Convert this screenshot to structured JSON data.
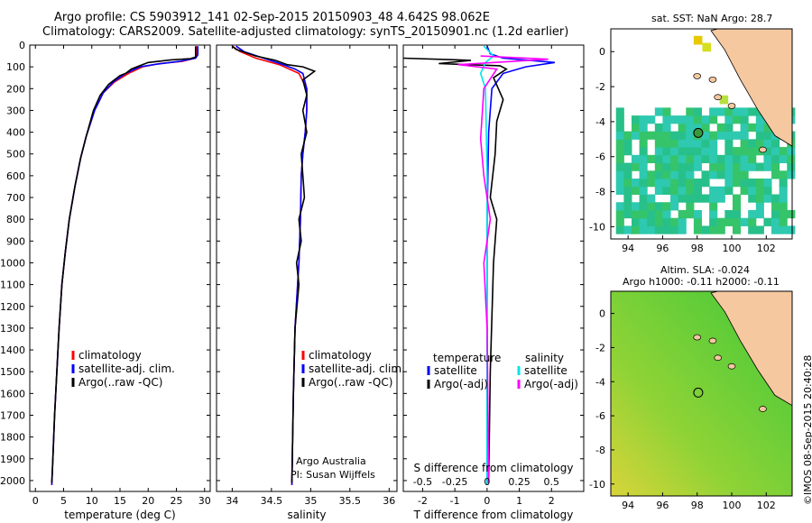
{
  "header": {
    "line1": "Argo profile: CS 5903912_141 02-Sep-2015 20150903_48 4.642S 98.062E",
    "line2": "Climatology: CARS2009. Satellite-adjusted climatology: synTS_20150901.nc (1.2d earlier)"
  },
  "colors": {
    "climatology": "#ff0000",
    "satellite": "#0000ff",
    "argo": "#000000",
    "salinity_sat": "#00e5ee",
    "salinity_argo": "#ff00ff"
  },
  "depth_ticks": [
    0,
    100,
    200,
    300,
    400,
    500,
    600,
    700,
    800,
    900,
    1000,
    1100,
    1200,
    1300,
    1400,
    1500,
    1600,
    1700,
    1800,
    1900,
    2000
  ],
  "chart_data": [
    {
      "type": "line",
      "panel": "temperature",
      "xlabel": "temperature (deg C)",
      "xlim": [
        -1,
        31
      ],
      "ylim": [
        2050,
        0
      ],
      "xticks": [
        0,
        5,
        10,
        15,
        20,
        25,
        30
      ],
      "legend": [
        "climatology",
        "satellite-adj. clim.",
        "Argo(..raw -QC)"
      ],
      "series": [
        {
          "name": "climatology",
          "color": "#ff0000",
          "points": [
            [
              28.6,
              5
            ],
            [
              28.6,
              45
            ],
            [
              28.3,
              60
            ],
            [
              26,
              75
            ],
            [
              22,
              85
            ],
            [
              19,
              100
            ],
            [
              16.5,
              130
            ],
            [
              14,
              170
            ],
            [
              12,
              220
            ],
            [
              10.5,
              300
            ],
            [
              9,
              420
            ],
            [
              8,
              520
            ],
            [
              7,
              650
            ],
            [
              6,
              800
            ],
            [
              5.3,
              950
            ],
            [
              4.7,
              1100
            ],
            [
              4.2,
              1300
            ],
            [
              3.8,
              1500
            ],
            [
              3.4,
              1700
            ],
            [
              3.1,
              1900
            ],
            [
              2.9,
              2020
            ]
          ]
        },
        {
          "name": "satellite-adj. clim.",
          "color": "#0000ff",
          "points": [
            [
              28.8,
              5
            ],
            [
              28.8,
              45
            ],
            [
              28.4,
              60
            ],
            [
              25.5,
              75
            ],
            [
              21.5,
              88
            ],
            [
              18.5,
              100
            ],
            [
              16,
              130
            ],
            [
              13.8,
              170
            ],
            [
              12,
              220
            ],
            [
              10.5,
              300
            ],
            [
              9,
              420
            ],
            [
              8,
              520
            ],
            [
              7,
              650
            ],
            [
              6,
              800
            ],
            [
              5.3,
              950
            ],
            [
              4.7,
              1100
            ],
            [
              4.2,
              1300
            ],
            [
              3.8,
              1500
            ],
            [
              3.4,
              1700
            ],
            [
              3.1,
              1900
            ],
            [
              2.9,
              2020
            ]
          ]
        },
        {
          "name": "Argo(..raw -QC)",
          "color": "#000000",
          "points": [
            [
              28.4,
              5
            ],
            [
              28.4,
              55
            ],
            [
              27.5,
              62
            ],
            [
              24,
              68
            ],
            [
              20,
              80
            ],
            [
              18.5,
              95
            ],
            [
              17,
              110
            ],
            [
              16,
              130
            ],
            [
              15,
              140
            ],
            [
              13,
              180
            ],
            [
              11.5,
              230
            ],
            [
              10.3,
              300
            ],
            [
              9,
              420
            ],
            [
              8,
              520
            ],
            [
              7,
              650
            ],
            [
              6,
              800
            ],
            [
              5.3,
              950
            ],
            [
              4.7,
              1100
            ],
            [
              4.2,
              1300
            ],
            [
              3.8,
              1500
            ],
            [
              3.4,
              1700
            ],
            [
              3.1,
              1900
            ],
            [
              2.9,
              2010
            ]
          ]
        }
      ]
    },
    {
      "type": "line",
      "panel": "salinity",
      "xlabel": "salinity",
      "xlim": [
        33.8,
        36.1
      ],
      "ylim": [
        2050,
        0
      ],
      "xticks": [
        34,
        34.5,
        35,
        35.5,
        36
      ],
      "xticklabels": [
        "34",
        "34.5",
        "35",
        "35.5",
        "36"
      ],
      "legend": [
        "climatology",
        "satellite-adj. clim.",
        "Argo(..raw -QC)"
      ],
      "annotation": [
        "Argo Australia",
        "PI: Susan Wijffels"
      ],
      "series": [
        {
          "name": "climatology",
          "color": "#ff0000",
          "points": [
            [
              34.0,
              5
            ],
            [
              34.1,
              30
            ],
            [
              34.3,
              60
            ],
            [
              34.6,
              90
            ],
            [
              34.85,
              130
            ],
            [
              34.95,
              200
            ],
            [
              34.95,
              300
            ],
            [
              34.93,
              400
            ],
            [
              34.9,
              500
            ],
            [
              34.88,
              600
            ],
            [
              34.87,
              800
            ],
            [
              34.85,
              1000
            ],
            [
              34.8,
              1300
            ],
            [
              34.78,
              1600
            ],
            [
              34.76,
              2020
            ]
          ]
        },
        {
          "name": "satellite-adj. clim.",
          "color": "#0000ff",
          "points": [
            [
              34.05,
              5
            ],
            [
              34.15,
              30
            ],
            [
              34.4,
              60
            ],
            [
              34.65,
              90
            ],
            [
              34.8,
              110
            ],
            [
              34.9,
              130
            ],
            [
              34.95,
              200
            ],
            [
              34.95,
              300
            ],
            [
              34.93,
              400
            ],
            [
              34.9,
              500
            ],
            [
              34.88,
              600
            ],
            [
              34.87,
              800
            ],
            [
              34.85,
              1000
            ],
            [
              34.8,
              1300
            ],
            [
              34.78,
              1600
            ],
            [
              34.76,
              2020
            ]
          ]
        },
        {
          "name": "Argo(..raw -QC)",
          "color": "#000000",
          "points": [
            [
              34.0,
              5
            ],
            [
              34.05,
              20
            ],
            [
              34.3,
              50
            ],
            [
              34.55,
              70
            ],
            [
              34.7,
              90
            ],
            [
              34.9,
              100
            ],
            [
              35.05,
              120
            ],
            [
              34.9,
              160
            ],
            [
              34.95,
              230
            ],
            [
              34.9,
              300
            ],
            [
              34.95,
              400
            ],
            [
              34.88,
              500
            ],
            [
              34.9,
              600
            ],
            [
              34.92,
              700
            ],
            [
              34.85,
              800
            ],
            [
              34.88,
              900
            ],
            [
              34.82,
              1000
            ],
            [
              34.85,
              1100
            ],
            [
              34.8,
              1300
            ],
            [
              34.78,
              1600
            ],
            [
              34.76,
              2010
            ]
          ]
        }
      ]
    },
    {
      "type": "line",
      "panel": "difference",
      "xlabel": "T difference from climatology",
      "xlabel_top": "S difference from climatology",
      "xlim": [
        -2.6,
        3.0
      ],
      "ylim": [
        2050,
        0
      ],
      "xticks": [
        -2,
        -1,
        0,
        1,
        2
      ],
      "sticks": [
        -0.5,
        -0.25,
        0,
        0.25,
        0.5
      ],
      "legend_groups": [
        {
          "title": "temperature",
          "items": [
            "satellite",
            "Argo(-adj)"
          ]
        },
        {
          "title": "salinity",
          "items": [
            "satellite",
            "Argo(-adj)"
          ]
        }
      ],
      "series": [
        {
          "name": "T satellite",
          "color": "#0000ff",
          "points": [
            [
              0,
              5
            ],
            [
              0.1,
              40
            ],
            [
              0.5,
              60
            ],
            [
              2.1,
              80
            ],
            [
              1.2,
              100
            ],
            [
              0.5,
              130
            ],
            [
              0.15,
              200
            ],
            [
              0.05,
              400
            ],
            [
              0,
              800
            ],
            [
              0,
              2020
            ]
          ]
        },
        {
          "name": "T Argo(-adj)",
          "color": "#000000",
          "points": [
            [
              -2.6,
              60
            ],
            [
              -0.5,
              70
            ],
            [
              -1.5,
              85
            ],
            [
              0.4,
              95
            ],
            [
              0.6,
              110
            ],
            [
              0.2,
              150
            ],
            [
              0.5,
              250
            ],
            [
              0.3,
              350
            ],
            [
              0.25,
              500
            ],
            [
              0.1,
              700
            ],
            [
              0.3,
              800
            ],
            [
              0.2,
              1000
            ],
            [
              0.1,
              1500
            ],
            [
              0.05,
              2010
            ]
          ]
        },
        {
          "name": "S satellite",
          "color": "#00e5ee",
          "points": [
            [
              -0.1,
              5
            ],
            [
              0.2,
              50
            ],
            [
              -0.05,
              80
            ],
            [
              -0.2,
              130
            ],
            [
              -0.05,
              200
            ],
            [
              0,
              600
            ],
            [
              0,
              2020
            ]
          ]
        },
        {
          "name": "S Argo(-adj)",
          "color": "#ff00ff",
          "points": [
            [
              -0.2,
              50
            ],
            [
              1.9,
              65
            ],
            [
              -0.9,
              90
            ],
            [
              0.3,
              110
            ],
            [
              -0.1,
              200
            ],
            [
              -0.2,
              430
            ],
            [
              -0.1,
              600
            ],
            [
              0.1,
              800
            ],
            [
              -0.1,
              1000
            ],
            [
              0,
              1300
            ],
            [
              0.05,
              2010
            ]
          ]
        }
      ]
    },
    {
      "type": "heatmap",
      "panel": "map-sst",
      "title": "sat. SST: NaN Argo: 28.7",
      "xlim": [
        93,
        103.5
      ],
      "ylim": [
        -10.7,
        1.3
      ],
      "xticks": [
        94,
        96,
        98,
        100,
        102
      ],
      "yticks": [
        0,
        -2,
        -4,
        -6,
        -8,
        -10
      ],
      "argo_marker": {
        "lon": 98.062,
        "lat": -4.642
      }
    },
    {
      "type": "heatmap",
      "panel": "map-sla",
      "title": "Altim. SLA: -0.024",
      "subtitle": "Argo h1000: -0.11 h2000: -0.11",
      "xlim": [
        93,
        103.5
      ],
      "ylim": [
        -10.7,
        1.3
      ],
      "xticks": [
        94,
        96,
        98,
        100,
        102
      ],
      "yticks": [
        0,
        -2,
        -4,
        -6,
        -8,
        -10
      ],
      "argo_marker": {
        "lon": 98.062,
        "lat": -4.642
      }
    }
  ],
  "footer_stamp": "©IMOS 08-Sep-2015 20:40:28"
}
